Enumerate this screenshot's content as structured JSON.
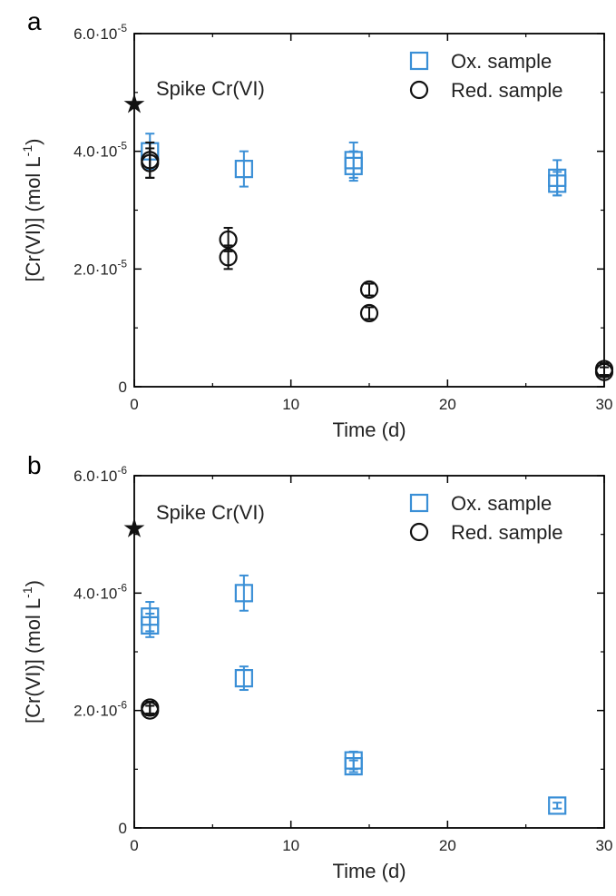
{
  "chart_data": [
    {
      "type": "scatter",
      "panel": "a",
      "xlabel": "Time (d)",
      "ylabel_main": "[Cr(VI)] (mol L",
      "ylabel_sup": "-1",
      "ylabel_close": ")",
      "xlim": [
        0,
        30
      ],
      "ylim": [
        0,
        6e-05
      ],
      "x_ticks": [
        0,
        10,
        20,
        30
      ],
      "y_ticks": [
        {
          "value": 0,
          "label": "0",
          "sup": ""
        },
        {
          "value": 2e-05,
          "label": "2.0·10",
          "sup": "-5"
        },
        {
          "value": 4e-05,
          "label": "4.0·10",
          "sup": "-5"
        },
        {
          "value": 6e-05,
          "label": "6.0·10",
          "sup": "-5"
        }
      ],
      "grid": false,
      "legend_position": "top-right",
      "spike": {
        "label": "Spike Cr(VI)",
        "x": 0,
        "y": 4.8e-05
      },
      "series": [
        {
          "name": "Ox. sample",
          "marker": "square",
          "color": "#3a8fd6",
          "points": [
            {
              "x": 1,
              "y": 4e-05,
              "err": 3e-06
            },
            {
              "x": 7,
              "y": 3.7e-05,
              "err": 3e-06
            },
            {
              "x": 14,
              "y": 3.85e-05,
              "err": 3e-06
            },
            {
              "x": 14,
              "y": 3.75e-05,
              "err": 2.5e-06
            },
            {
              "x": 27,
              "y": 3.55e-05,
              "err": 3e-06
            },
            {
              "x": 27,
              "y": 3.45e-05,
              "err": 2e-06
            }
          ]
        },
        {
          "name": "Red. sample",
          "marker": "circle",
          "color": "#111111",
          "points": [
            {
              "x": 1,
              "y": 3.85e-05,
              "err": 3e-06
            },
            {
              "x": 1,
              "y": 3.8e-05,
              "err": 2.5e-06
            },
            {
              "x": 6,
              "y": 2.5e-05,
              "err": 2e-06
            },
            {
              "x": 6,
              "y": 2.2e-05,
              "err": 2e-06
            },
            {
              "x": 15,
              "y": 1.65e-05,
              "err": 1e-06
            },
            {
              "x": 15,
              "y": 1.25e-05,
              "err": 1e-06
            },
            {
              "x": 30,
              "y": 3e-06,
              "err": 1e-06
            },
            {
              "x": 30,
              "y": 2.5e-06,
              "err": 8e-07
            }
          ]
        }
      ]
    },
    {
      "type": "scatter",
      "panel": "b",
      "xlabel": "Time (d)",
      "ylabel_main": "[Cr(VI)] (mol L",
      "ylabel_sup": "-1",
      "ylabel_close": ")",
      "xlim": [
        0,
        30
      ],
      "ylim": [
        0,
        6e-06
      ],
      "x_ticks": [
        0,
        10,
        20,
        30
      ],
      "y_ticks": [
        {
          "value": 0,
          "label": "0",
          "sup": ""
        },
        {
          "value": 2e-06,
          "label": "2.0·10",
          "sup": "-6"
        },
        {
          "value": 4e-06,
          "label": "4.0·10",
          "sup": "-6"
        },
        {
          "value": 6e-06,
          "label": "6.0·10",
          "sup": "-6"
        }
      ],
      "grid": false,
      "legend_position": "top-right",
      "spike": {
        "label": "Spike Cr(VI)",
        "x": 0,
        "y": 5.1e-06
      },
      "series": [
        {
          "name": "Ox. sample",
          "marker": "square",
          "color": "#3a8fd6",
          "points": [
            {
              "x": 1,
              "y": 3.6e-06,
              "err": 2.5e-07
            },
            {
              "x": 1,
              "y": 3.45e-06,
              "err": 2e-07
            },
            {
              "x": 7,
              "y": 4e-06,
              "err": 3e-07
            },
            {
              "x": 7,
              "y": 2.55e-06,
              "err": 2e-07
            },
            {
              "x": 14,
              "y": 1.15e-06,
              "err": 1.5e-07
            },
            {
              "x": 14,
              "y": 1.05e-06,
              "err": 1e-07
            },
            {
              "x": 27,
              "y": 3.8e-07,
              "err": 5e-08
            }
          ]
        },
        {
          "name": "Red. sample",
          "marker": "circle",
          "color": "#111111",
          "points": [
            {
              "x": 1,
              "y": 2.05e-06,
              "err": 1e-07
            },
            {
              "x": 1,
              "y": 2e-06,
              "err": 8e-08
            }
          ]
        }
      ]
    }
  ]
}
